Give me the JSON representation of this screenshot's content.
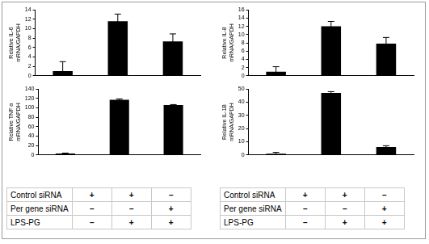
{
  "chart_data": [
    {
      "type": "bar",
      "ylabel": [
        "Relative IL-6",
        "mRNA/GAPDH"
      ],
      "categories": [
        null,
        null,
        null
      ],
      "values": [
        1,
        11.6,
        7.3
      ],
      "errors": [
        2,
        1.5,
        1.6
      ],
      "color": "#000000",
      "ylim": [
        0,
        14
      ],
      "yticks": [
        0,
        2,
        4,
        6,
        8,
        10,
        12,
        14
      ],
      "grid": false,
      "tick_labels": "y"
    },
    {
      "type": "bar",
      "ylabel": [
        "Relative IL-8",
        "mRNA/GAPDH"
      ],
      "categories": [
        null,
        null,
        null
      ],
      "values": [
        1,
        12,
        7.8
      ],
      "errors": [
        1.2,
        1.2,
        1.5
      ],
      "color": "#000000",
      "ylim": [
        0,
        16
      ],
      "yticks": [
        0,
        2,
        4,
        6,
        8,
        10,
        12,
        14,
        16
      ],
      "grid": false,
      "tick_labels": "y"
    },
    {
      "type": "bar",
      "ylabel": [
        "Relative TNF α",
        "mRNA/GAPDH"
      ],
      "categories": [
        null,
        null,
        null
      ],
      "values": [
        3,
        117,
        106
      ],
      "errors": [
        1,
        2,
        1
      ],
      "color": "#000000",
      "ylim": [
        0,
        140
      ],
      "yticks": [
        0,
        20,
        40,
        60,
        80,
        100,
        120,
        140
      ],
      "grid": false,
      "tick_labels": "y"
    },
    {
      "type": "bar",
      "ylabel": [
        "Relative IL-1B",
        "mRNA/GAPDH"
      ],
      "categories": [
        null,
        null,
        null
      ],
      "values": [
        1,
        47,
        6
      ],
      "errors": [
        1,
        1,
        1
      ],
      "color": "#000000",
      "ylim": [
        0,
        50
      ],
      "yticks": [
        0,
        10,
        20,
        30,
        40,
        50
      ],
      "grid": false,
      "tick_labels": "y"
    }
  ],
  "conditions": [
    {
      "label": "Control siRNA",
      "marks": [
        "+",
        "+",
        "–"
      ]
    },
    {
      "label": "Per gene siRNA",
      "marks": [
        "–",
        "–",
        "+"
      ]
    },
    {
      "label": "LPS-PG",
      "marks": [
        "–",
        "+",
        "+"
      ]
    }
  ]
}
